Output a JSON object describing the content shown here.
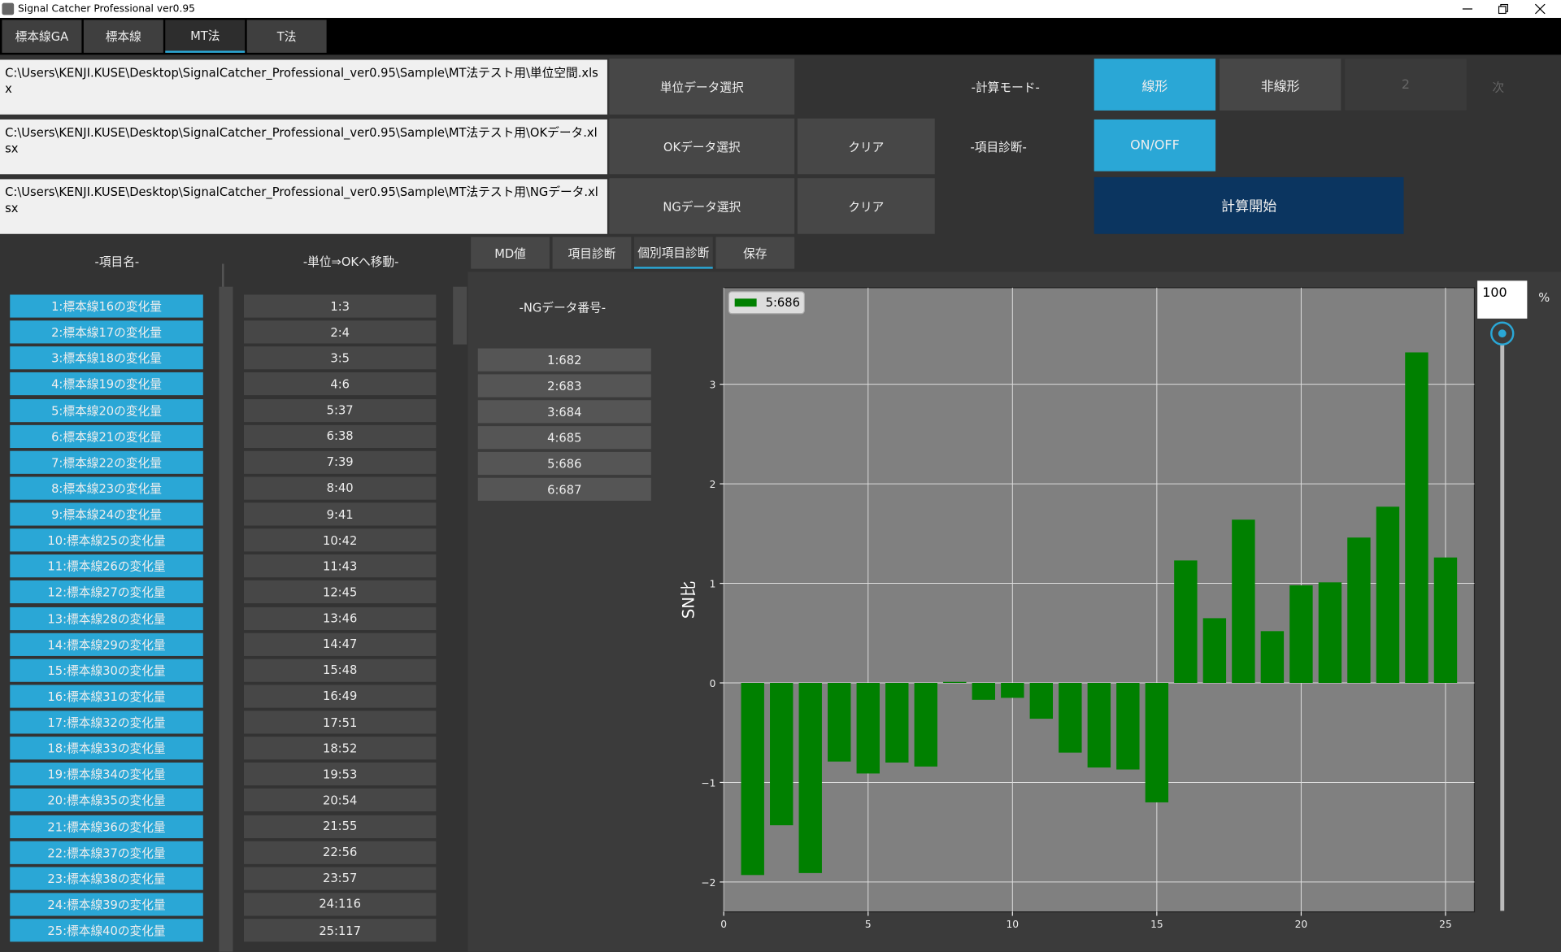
{
  "window": {
    "title": "Signal Catcher Professional ver0.95"
  },
  "tabs": [
    "標本線GA",
    "標本線",
    "MT法",
    "T法"
  ],
  "files": [
    {
      "path": "C:\\Users\\KENJI.KUSE\\Desktop\\SignalCatcher_Professional_ver0.95\\Sample\\MT法テスト用\\単位空間.xlsx",
      "button": "単位データ選択"
    },
    {
      "path": "C:\\Users\\KENJI.KUSE\\Desktop\\SignalCatcher_Professional_ver0.95\\Sample\\MT法テスト用\\OKデータ.xlsx",
      "button": "OKデータ選択",
      "clear": "クリア"
    },
    {
      "path": "C:\\Users\\KENJI.KUSE\\Desktop\\SignalCatcher_Professional_ver0.95\\Sample\\MT法テスト用\\NGデータ.xlsx",
      "button": "NGデータ選択",
      "clear": "クリア"
    }
  ],
  "mode": {
    "label": "-計算モード-",
    "options": [
      "線形",
      "非線形",
      "2"
    ],
    "next": "次"
  },
  "diagnosis": {
    "label": "-項目診断-",
    "toggle": "ON/OFF"
  },
  "start": "計算開始",
  "item_header": "-項目名-",
  "move_header": "-単位⇒OKへ移動-",
  "items": [
    "1:標本線16の変化量",
    "2:標本線17の変化量",
    "3:標本線18の変化量",
    "4:標本線19の変化量",
    "5:標本線20の変化量",
    "6:標本線21の変化量",
    "7:標本線22の変化量",
    "8:標本線23の変化量",
    "9:標本線24の変化量",
    "10:標本線25の変化量",
    "11:標本線26の変化量",
    "12:標本線27の変化量",
    "13:標本線28の変化量",
    "14:標本線29の変化量",
    "15:標本線30の変化量",
    "16:標本線31の変化量",
    "17:標本線32の変化量",
    "18:標本線33の変化量",
    "19:標本線34の変化量",
    "20:標本線35の変化量",
    "21:標本線36の変化量",
    "22:標本線37の変化量",
    "23:標本線38の変化量",
    "24:標本線39の変化量",
    "25:標本線40の変化量"
  ],
  "moved": [
    "1:3",
    "2:4",
    "3:5",
    "4:6",
    "5:37",
    "6:38",
    "7:39",
    "8:40",
    "9:41",
    "10:42",
    "11:43",
    "12:45",
    "13:46",
    "14:47",
    "15:48",
    "16:49",
    "17:51",
    "18:52",
    "19:53",
    "20:54",
    "21:55",
    "22:56",
    "23:57",
    "24:116",
    "25:117"
  ],
  "subtabs": [
    "MD値",
    "項目診断",
    "個別項目診断",
    "保存"
  ],
  "ng_header": "-NGデータ番号-",
  "ng_list": [
    "1:682",
    "2:683",
    "3:684",
    "4:685",
    "5:686",
    "6:687"
  ],
  "slider": {
    "value": 100,
    "unit": "%"
  },
  "chart_data": {
    "type": "bar",
    "y_label": "SN比",
    "x": [
      1,
      2,
      3,
      4,
      5,
      6,
      7,
      8,
      9,
      10,
      11,
      12,
      13,
      14,
      15,
      16,
      17,
      18,
      19,
      20,
      21,
      22,
      23,
      24,
      25
    ],
    "series": [
      {
        "name": "5:686",
        "color": "#008000",
        "values": [
          -1.93,
          -1.43,
          -1.91,
          -0.79,
          -0.91,
          -0.8,
          -0.84,
          0.01,
          -0.17,
          -0.15,
          -0.36,
          -0.7,
          -0.85,
          -0.87,
          -1.2,
          1.23,
          0.65,
          1.64,
          0.52,
          0.98,
          1.01,
          1.46,
          1.77,
          3.32,
          1.26
        ]
      }
    ],
    "xlim": [
      0,
      26
    ],
    "ylim": [
      -2.3,
      3.97
    ],
    "xticks": [
      0,
      5,
      10,
      15,
      20,
      25
    ],
    "yticks": [
      {
        "value": -2,
        "label": "−2"
      },
      {
        "value": -1,
        "label": "−1"
      },
      0,
      1,
      2,
      3
    ],
    "grid": true,
    "legend": "upper left",
    "background": "#808080"
  }
}
